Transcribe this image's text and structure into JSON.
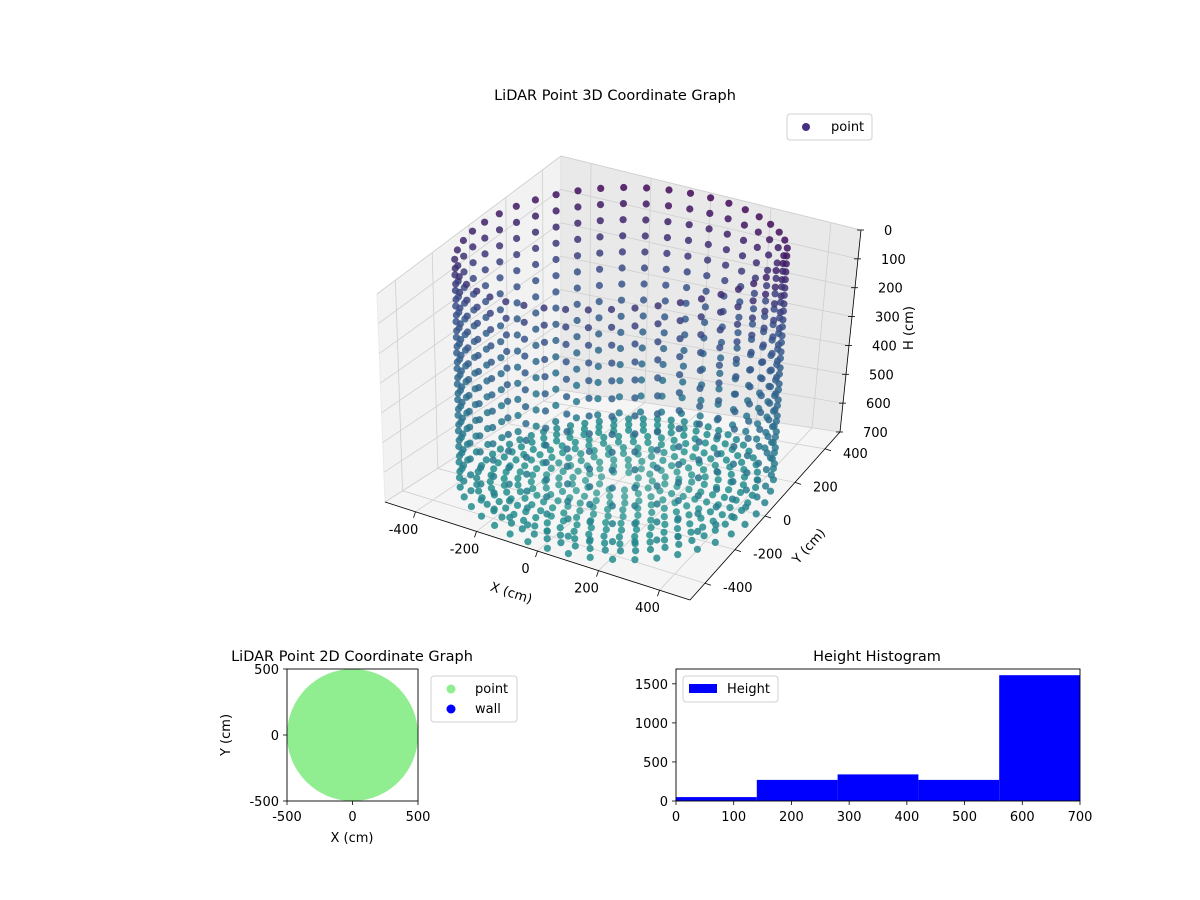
{
  "chart_data": [
    {
      "type": "scatter",
      "subtype": "3d",
      "title": "LiDAR Point 3D Coordinate Graph",
      "xlabel": "X (cm)",
      "ylabel": "Y (cm)",
      "zlabel": "H (cm)",
      "xlim": [
        -500,
        500
      ],
      "ylim": [
        -500,
        500
      ],
      "zlim": [
        0,
        700
      ],
      "z_inverted": true,
      "x_ticks": [
        "-400",
        "-200",
        "0",
        "200",
        "400"
      ],
      "y_ticks": [
        "-400",
        "-200",
        "0",
        "200",
        "400"
      ],
      "z_ticks": [
        "0",
        "100",
        "200",
        "300",
        "400",
        "500",
        "600",
        "700"
      ],
      "grid": true,
      "legend": {
        "placement": "top-right",
        "entries": [
          "point"
        ]
      },
      "colormap": [
        "#440154",
        "#3b528b",
        "#2c728e",
        "#21908d",
        "#5fb0a6"
      ],
      "series": [
        {
          "name": "point",
          "shape": "cylindrical wall with floor rings",
          "wall_radius": 470,
          "wall_heights": [
            0,
            50,
            100,
            150,
            200,
            250,
            300,
            350,
            400,
            450,
            500,
            550,
            600,
            650,
            700
          ],
          "angular_step_deg": 8,
          "floor_height": 700,
          "floor_radii": [
            60,
            100,
            140,
            180,
            220,
            260,
            300,
            340,
            380,
            420
          ]
        }
      ]
    },
    {
      "type": "scatter",
      "title": "LiDAR Point 2D Coordinate Graph",
      "xlabel": "X (cm)",
      "ylabel": "Y (cm)",
      "xlim": [
        -500,
        500
      ],
      "ylim": [
        -500,
        500
      ],
      "x_ticks": [
        "-500",
        "0",
        "500"
      ],
      "y_ticks": [
        "500",
        "0",
        "-500"
      ],
      "legend": {
        "placement": "outside-right",
        "entries": [
          "point",
          "wall"
        ]
      },
      "series": [
        {
          "name": "point",
          "color": "#90ee90",
          "region": "filled disc, radius 500"
        },
        {
          "name": "wall",
          "color": "#0000ff",
          "points": []
        }
      ]
    },
    {
      "type": "bar",
      "subtype": "histogram",
      "title": "Height Histogram",
      "bin_edges": [
        0,
        140,
        280,
        420,
        560,
        700
      ],
      "values": [
        50,
        270,
        340,
        270,
        1610
      ],
      "xlim": [
        0,
        700
      ],
      "ylim": [
        0,
        1690
      ],
      "x_ticks": [
        "0",
        "100",
        "200",
        "300",
        "400",
        "500",
        "600",
        "700"
      ],
      "y_ticks": [
        "0",
        "500",
        "1000",
        "1500"
      ],
      "legend": {
        "placement": "top-left",
        "entries": [
          "Height"
        ]
      },
      "series": [
        {
          "name": "Height",
          "color": "#0000ff"
        }
      ]
    }
  ]
}
